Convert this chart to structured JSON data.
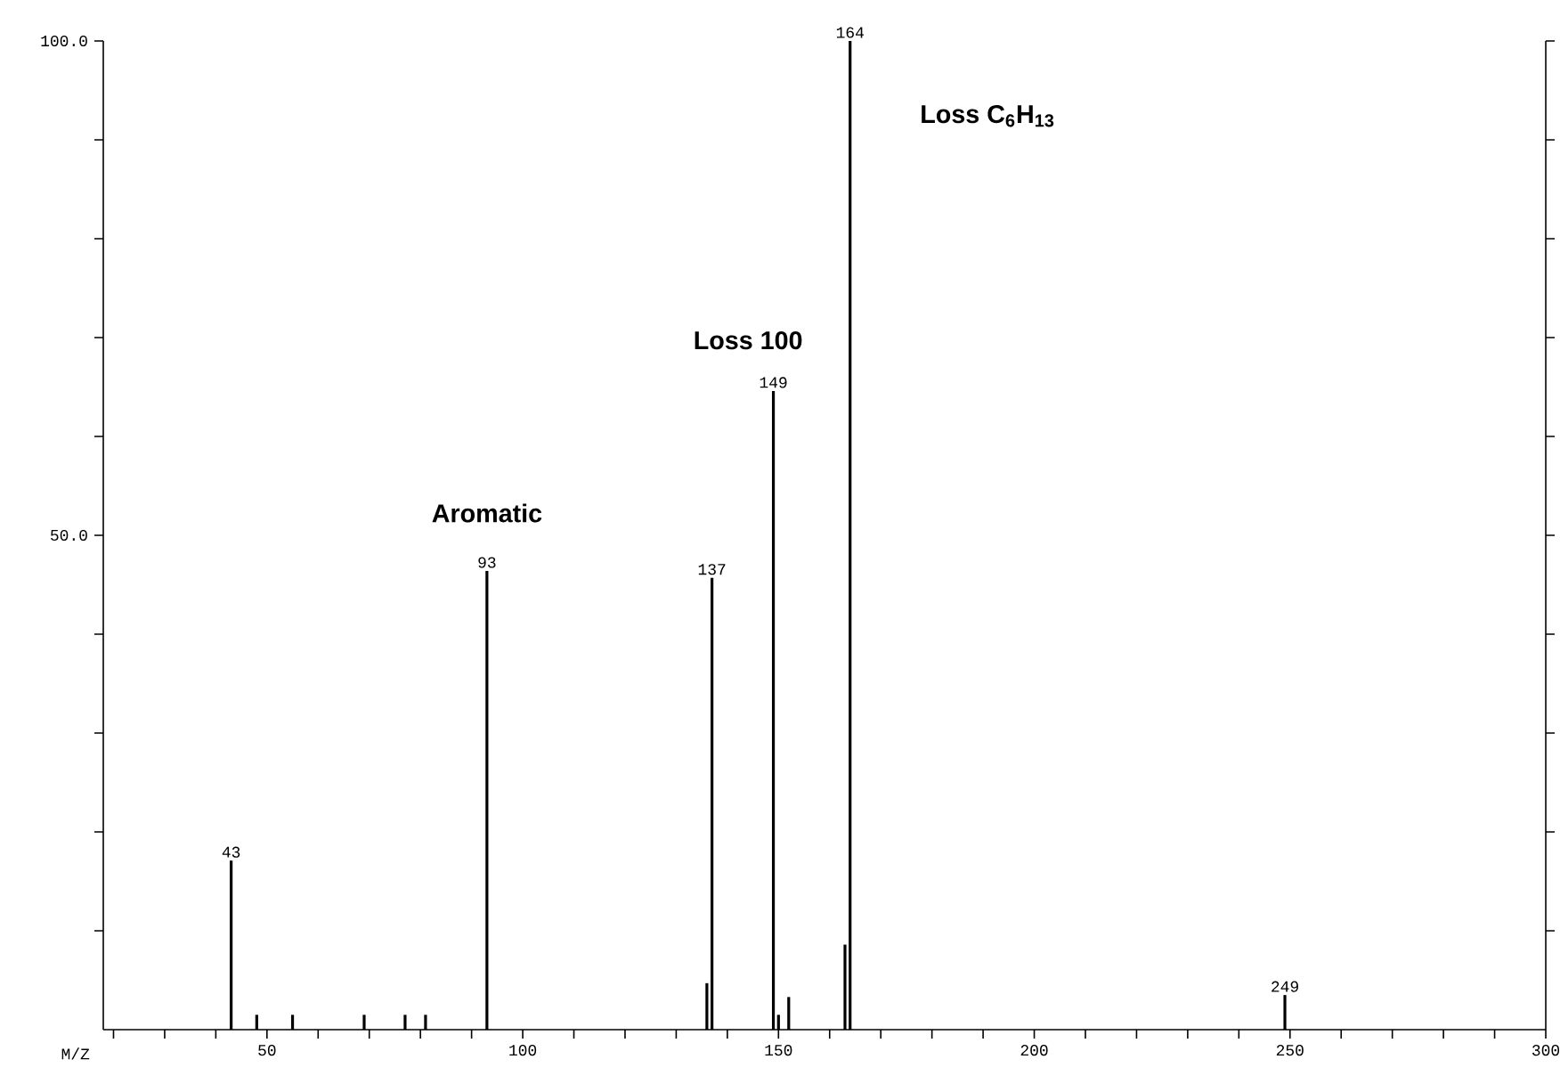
{
  "chart_data": {
    "type": "bar",
    "xlabel": "M/Z",
    "x": [
      43,
      48,
      55,
      69,
      77,
      81,
      93,
      136,
      137,
      149,
      150,
      152,
      163,
      164,
      249
    ],
    "series": [
      {
        "color": "#000000",
        "values": [
          17.1,
          1.5,
          1.5,
          1.5,
          1.5,
          1.5,
          46.4,
          4.7,
          45.7,
          64.6,
          1.5,
          3.3,
          8.6,
          100,
          3.5
        ]
      }
    ],
    "xlim": [
      18,
      300
    ],
    "ylim": [
      0,
      100
    ],
    "xticks": [
      {
        "value": 20,
        "label": null
      },
      {
        "value": 30,
        "label": null
      },
      {
        "value": 40,
        "label": null
      },
      50,
      {
        "value": 60,
        "label": null
      },
      {
        "value": 70,
        "label": null
      },
      {
        "value": 80,
        "label": null
      },
      {
        "value": 90,
        "label": null
      },
      100,
      {
        "value": 110,
        "label": null
      },
      {
        "value": 120,
        "label": null
      },
      {
        "value": 130,
        "label": null
      },
      {
        "value": 140,
        "label": null
      },
      150,
      {
        "value": 160,
        "label": null
      },
      {
        "value": 170,
        "label": null
      },
      {
        "value": 180,
        "label": null
      },
      {
        "value": 190,
        "label": null
      },
      200,
      {
        "value": 210,
        "label": null
      },
      {
        "value": 220,
        "label": null
      },
      {
        "value": 230,
        "label": null
      },
      {
        "value": 240,
        "label": null
      },
      250,
      {
        "value": 260,
        "label": null
      },
      {
        "value": 270,
        "label": null
      },
      {
        "value": 280,
        "label": null
      },
      {
        "value": 290,
        "label": null
      },
      300
    ],
    "yticks": [
      {
        "value": 10,
        "label": null
      },
      {
        "value": 20,
        "label": null
      },
      {
        "value": 30,
        "label": null
      },
      {
        "value": 40,
        "label": null
      },
      {
        "value": 50,
        "label": "50.0"
      },
      {
        "value": 60,
        "label": null
      },
      {
        "value": 70,
        "label": null
      },
      {
        "value": 80,
        "label": null
      },
      {
        "value": 90,
        "label": null
      },
      {
        "value": 100,
        "label": "100.0"
      }
    ],
    "annotations": [
      {
        "text": "43",
        "x": 43,
        "y": 17.1
      },
      {
        "text": "93",
        "x": 93,
        "y": 46.4
      },
      {
        "text": "137",
        "x": 137,
        "y": 45.7
      },
      {
        "text": "149",
        "x": 149,
        "y": 64.6
      },
      {
        "text": "164",
        "x": 164,
        "y": 100
      },
      {
        "text": "249",
        "x": 249,
        "y": 3.5
      },
      "Aromatic",
      "Loss 100",
      "Loss C$_{6}$H$_{13}$"
    ],
    "grid": false
  }
}
